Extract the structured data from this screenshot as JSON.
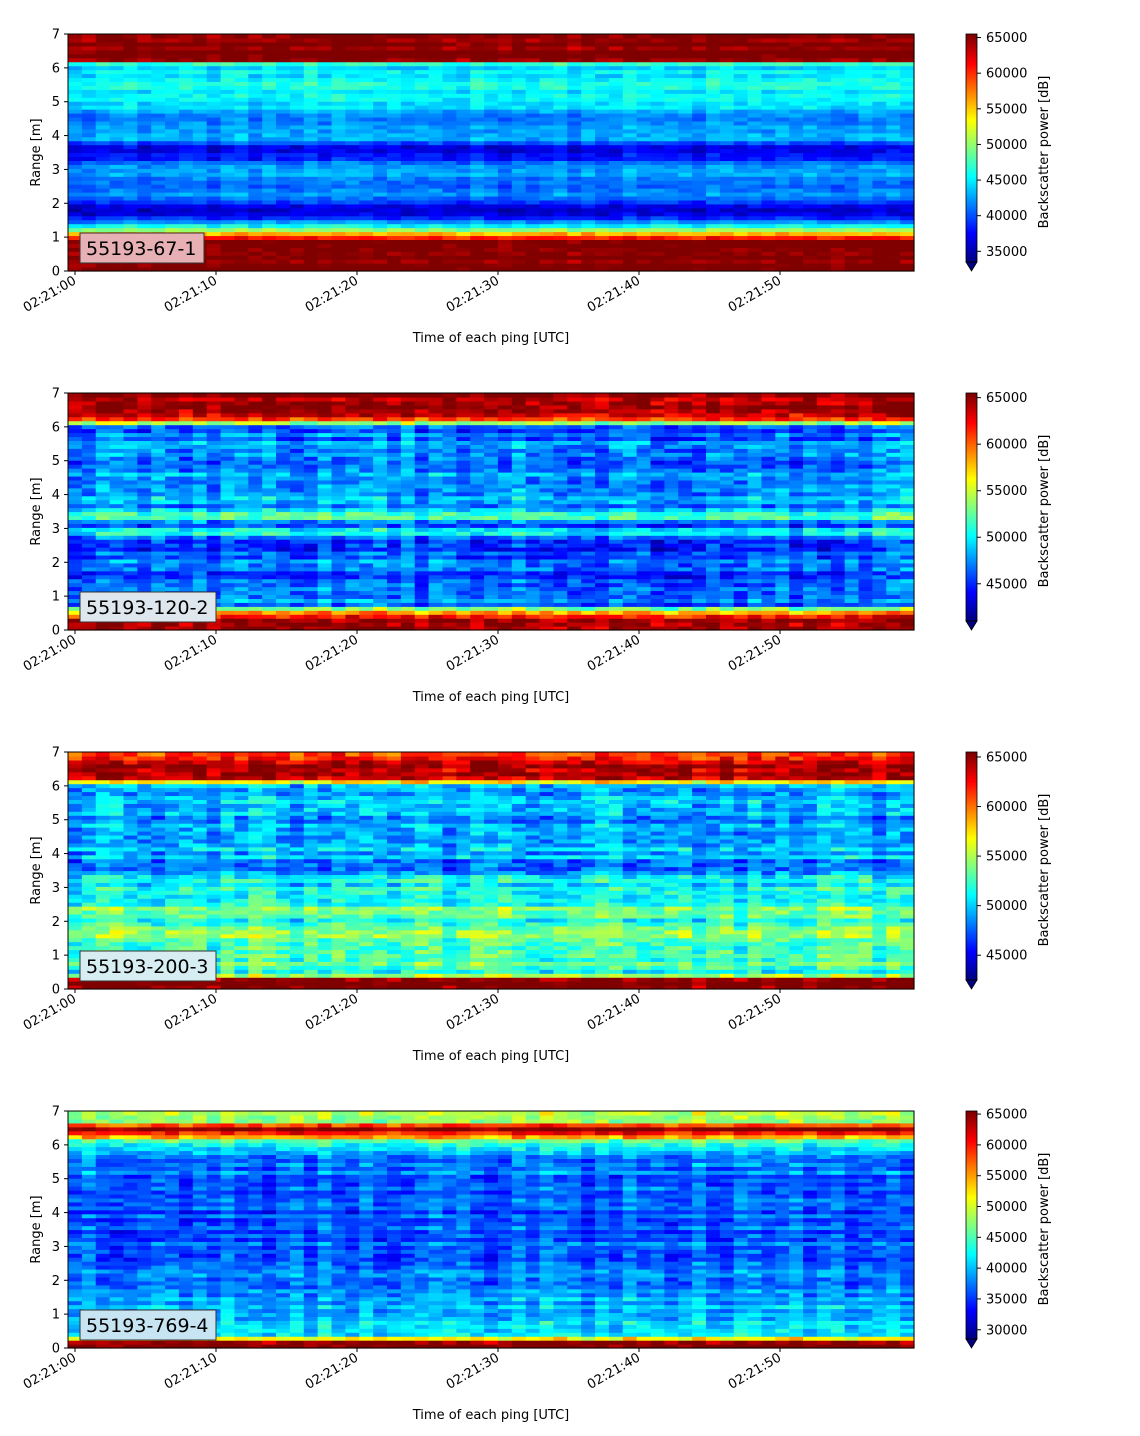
{
  "figure": {
    "colormap": "jet",
    "colors": {
      "axis": "#000000",
      "background": "#ffffff",
      "label_box_edge": "#333333"
    }
  },
  "chart_data": [
    {
      "type": "heatmap",
      "panel_label": "55193-67-1",
      "label_box_color": "#e6b0b4",
      "xlabel": "Time of each ping [UTC]",
      "ylabel": "Range [m]",
      "colorbar_label": "Backscatter power [dB]",
      "x_ticks": [
        "02:21:00",
        "02:21:10",
        "02:21:20",
        "02:21:30",
        "02:21:40",
        "02:21:50"
      ],
      "x_range": [
        "02:21:00",
        "02:21:59"
      ],
      "ylim": [
        0,
        7
      ],
      "y_ticks": [
        0,
        1,
        2,
        3,
        4,
        5,
        6,
        7
      ],
      "colorbar_range": [
        33500,
        65500
      ],
      "colorbar_ticks": [
        35000,
        40000,
        45000,
        50000,
        55000,
        60000,
        65000
      ],
      "colorbar_extend": "min",
      "range_profile_m": [
        0,
        0.3,
        0.9,
        1.1,
        1.3,
        1.6,
        1.9,
        2.2,
        2.6,
        3.0,
        3.4,
        3.6,
        4.0,
        4.4,
        4.9,
        5.5,
        6.1,
        6.25,
        7.0
      ],
      "range_profile_value": [
        65500,
        65500,
        65500,
        57000,
        46000,
        38000,
        35500,
        42000,
        40000,
        43000,
        38000,
        36000,
        44000,
        41000,
        44500,
        46000,
        44000,
        65500,
        65500
      ],
      "noise": 2500
    },
    {
      "type": "heatmap",
      "panel_label": "55193-120-2",
      "label_box_color": "#dfe7ee",
      "xlabel": "Time of each ping [UTC]",
      "ylabel": "Range [m]",
      "colorbar_label": "Backscatter power [dB]",
      "x_ticks": [
        "02:21:00",
        "02:21:10",
        "02:21:20",
        "02:21:30",
        "02:21:40",
        "02:21:50"
      ],
      "x_range": [
        "02:21:00",
        "02:21:59"
      ],
      "ylim": [
        0,
        7
      ],
      "y_ticks": [
        0,
        1,
        2,
        3,
        4,
        5,
        6,
        7
      ],
      "colorbar_range": [
        41000,
        65500
      ],
      "colorbar_ticks": [
        45000,
        50000,
        55000,
        60000,
        65000
      ],
      "colorbar_extend": "min",
      "range_profile_m": [
        0,
        0.3,
        0.6,
        0.75,
        0.9,
        1.3,
        1.6,
        2.0,
        2.6,
        2.9,
        3.1,
        3.4,
        3.7,
        4.1,
        4.5,
        5.0,
        5.5,
        6.0,
        6.3,
        6.5,
        7.0
      ],
      "range_profile_value": [
        65500,
        65500,
        58000,
        45000,
        47000,
        48000,
        46000,
        47500,
        44000,
        52000,
        45500,
        53000,
        47000,
        49000,
        48000,
        46500,
        47500,
        46000,
        65500,
        64000,
        65500
      ],
      "noise": 3500
    },
    {
      "type": "heatmap",
      "panel_label": "55193-200-3",
      "label_box_color": "#d6eef2",
      "xlabel": "Time of each ping [UTC]",
      "ylabel": "Range [m]",
      "colorbar_label": "Backscatter power [dB]",
      "x_ticks": [
        "02:21:00",
        "02:21:10",
        "02:21:20",
        "02:21:30",
        "02:21:40",
        "02:21:50"
      ],
      "x_range": [
        "02:21:00",
        "02:21:59"
      ],
      "ylim": [
        0,
        7
      ],
      "y_ticks": [
        0,
        1,
        2,
        3,
        4,
        5,
        6,
        7
      ],
      "colorbar_range": [
        42500,
        65500
      ],
      "colorbar_ticks": [
        45000,
        50000,
        55000,
        60000,
        65000
      ],
      "colorbar_extend": "min",
      "range_profile_m": [
        0,
        0.3,
        0.45,
        0.8,
        1.2,
        1.6,
        2.0,
        2.4,
        2.8,
        3.2,
        3.6,
        4.0,
        4.5,
        5.0,
        5.5,
        6.0,
        6.3,
        6.6,
        7.0
      ],
      "range_profile_value": [
        65500,
        65500,
        50000,
        53000,
        53500,
        54000,
        51000,
        53500,
        50000,
        51500,
        48000,
        49500,
        49000,
        48500,
        49000,
        49500,
        65500,
        64000,
        62000
      ],
      "noise": 3500
    },
    {
      "type": "heatmap",
      "panel_label": "55193-769-4",
      "label_box_color": "#c7e4f2",
      "xlabel": "Time of each ping [UTC]",
      "ylabel": "Range [m]",
      "colorbar_label": "Backscatter power [dB]",
      "x_ticks": [
        "02:21:00",
        "02:21:10",
        "02:21:20",
        "02:21:30",
        "02:21:40",
        "02:21:50"
      ],
      "x_range": [
        "02:21:00",
        "02:21:59"
      ],
      "ylim": [
        0,
        7
      ],
      "y_ticks": [
        0,
        1,
        2,
        3,
        4,
        5,
        6,
        7
      ],
      "colorbar_range": [
        28500,
        65500
      ],
      "colorbar_ticks": [
        30000,
        35000,
        40000,
        45000,
        50000,
        55000,
        60000,
        65000
      ],
      "colorbar_extend": "min",
      "range_profile_m": [
        0,
        0.2,
        0.35,
        0.7,
        1.0,
        1.5,
        2.0,
        3.0,
        4.0,
        5.0,
        5.8,
        6.1,
        6.3,
        6.5,
        6.7,
        7.0
      ],
      "range_profile_value": [
        65500,
        65500,
        43000,
        41000,
        40000,
        39000,
        38000,
        37000,
        36000,
        37000,
        39000,
        46000,
        58000,
        65500,
        48000,
        50000
      ],
      "noise": 4500
    }
  ]
}
